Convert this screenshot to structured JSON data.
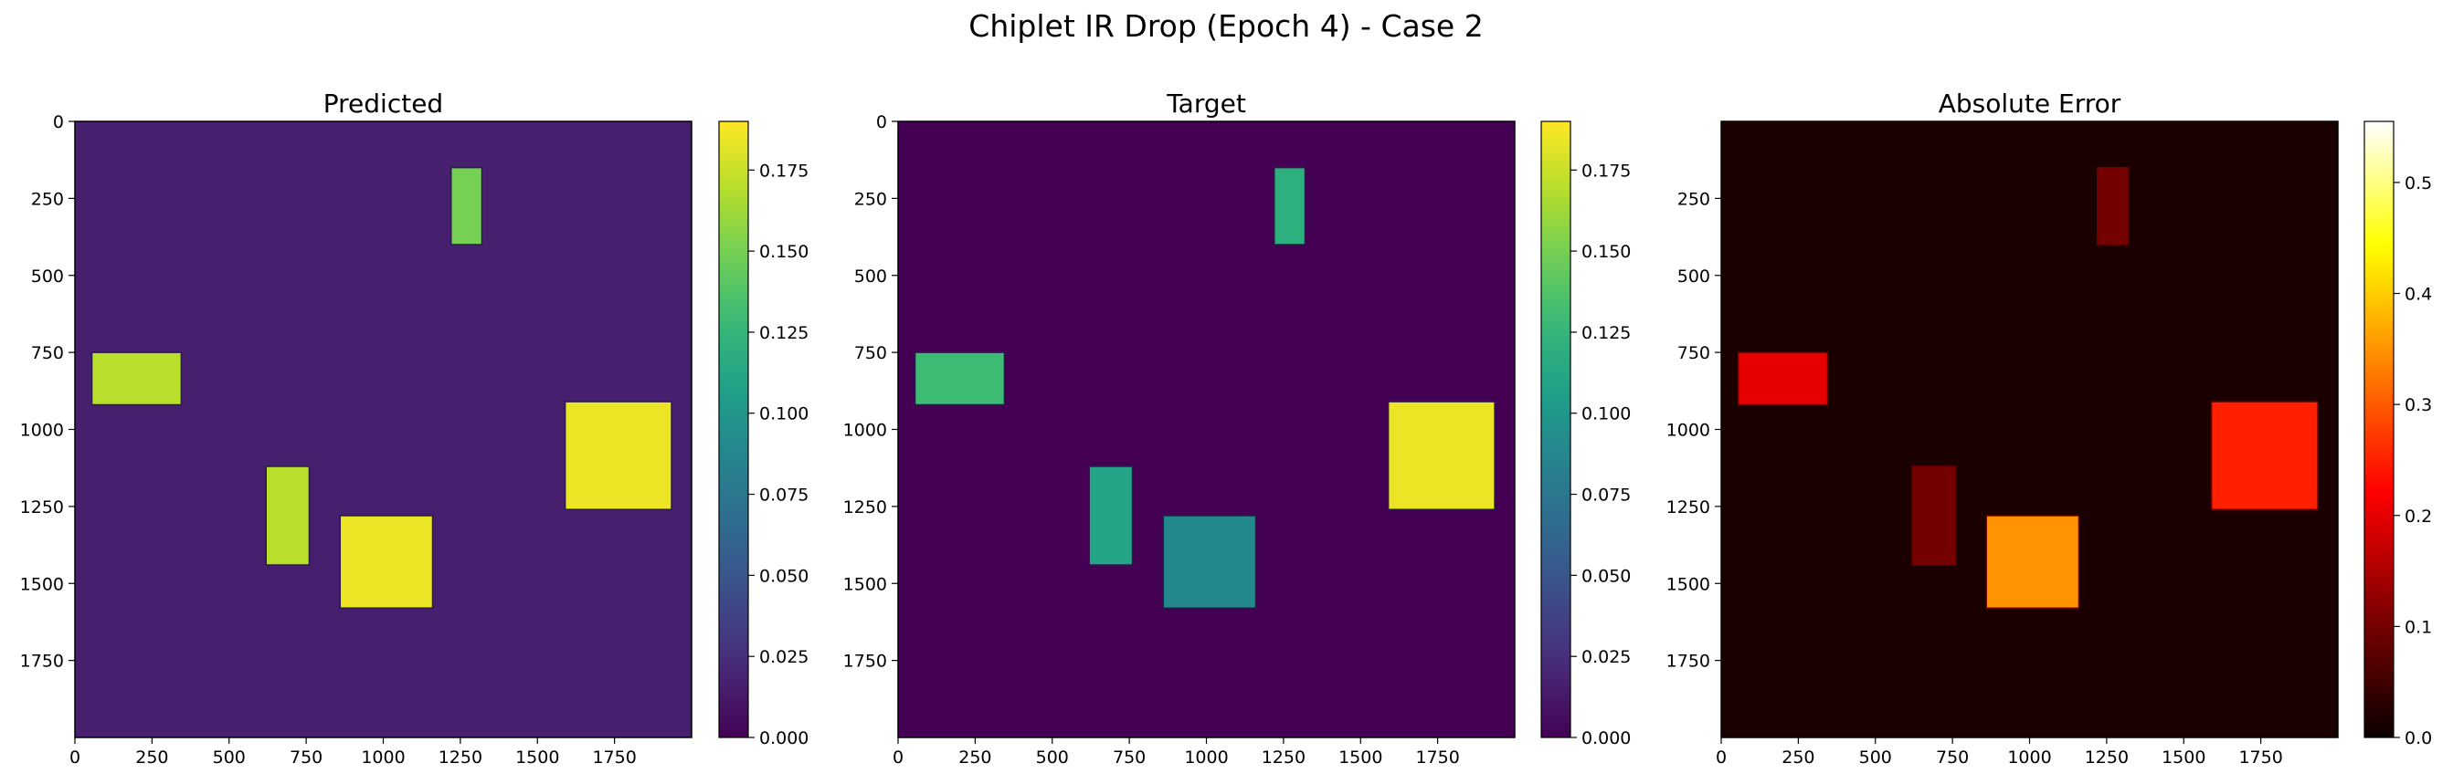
{
  "suptitle": "Chiplet IR Drop (Epoch 4) - Case 2",
  "chart_data": [
    {
      "type": "heatmap",
      "title": "Predicted",
      "colormap": "viridis",
      "xlim": [
        0,
        2000
      ],
      "ylim": [
        2000,
        0
      ],
      "xticks": [
        "0",
        "250",
        "500",
        "750",
        "1000",
        "1250",
        "1500",
        "1750"
      ],
      "yticks": [
        "0",
        "250",
        "500",
        "750",
        "1000",
        "1250",
        "1500",
        "1750"
      ],
      "background_value": 0.016,
      "colorbar": {
        "min": 0,
        "max": 0.19,
        "ticks": [
          "0.000",
          "0.025",
          "0.050",
          "0.075",
          "0.100",
          "0.125",
          "0.150",
          "0.175"
        ]
      },
      "blocks": [
        {
          "x0": 1220,
          "x1": 1320,
          "y0": 150,
          "y1": 400,
          "value": 0.15
        },
        {
          "x0": 55,
          "x1": 345,
          "y0": 750,
          "y1": 920,
          "value": 0.17
        },
        {
          "x0": 620,
          "x1": 760,
          "y0": 1120,
          "y1": 1440,
          "value": 0.17
        },
        {
          "x0": 860,
          "x1": 1160,
          "y0": 1280,
          "y1": 1580,
          "value": 0.185
        },
        {
          "x0": 1590,
          "x1": 1935,
          "y0": 910,
          "y1": 1260,
          "value": 0.185
        }
      ]
    },
    {
      "type": "heatmap",
      "title": "Target",
      "colormap": "viridis",
      "xlim": [
        0,
        2000
      ],
      "ylim": [
        2000,
        0
      ],
      "xticks": [
        "0",
        "250",
        "500",
        "750",
        "1000",
        "1250",
        "1500",
        "1750"
      ],
      "yticks": [
        "0",
        "250",
        "500",
        "750",
        "1000",
        "1250",
        "1500",
        "1750"
      ],
      "background_value": 0.0,
      "colorbar": {
        "min": 0,
        "max": 0.19,
        "ticks": [
          "0.000",
          "0.025",
          "0.050",
          "0.075",
          "0.100",
          "0.125",
          "0.150",
          "0.175"
        ]
      },
      "blocks": [
        {
          "x0": 1220,
          "x1": 1320,
          "y0": 150,
          "y1": 400,
          "value": 0.12
        },
        {
          "x0": 55,
          "x1": 345,
          "y0": 750,
          "y1": 920,
          "value": 0.13
        },
        {
          "x0": 620,
          "x1": 760,
          "y0": 1120,
          "y1": 1440,
          "value": 0.11
        },
        {
          "x0": 860,
          "x1": 1160,
          "y0": 1280,
          "y1": 1580,
          "value": 0.09
        },
        {
          "x0": 1590,
          "x1": 1935,
          "y0": 910,
          "y1": 1260,
          "value": 0.185
        }
      ]
    },
    {
      "type": "heatmap",
      "title": "Absolute Error",
      "colormap": "hot",
      "xlim": [
        0,
        2000
      ],
      "ylim": [
        2000,
        0
      ],
      "xticks": [
        "0",
        "250",
        "500",
        "750",
        "1000",
        "1250",
        "1500",
        "1750"
      ],
      "yticks": [
        "250",
        "500",
        "750",
        "1000",
        "1250",
        "1500",
        "1750"
      ],
      "background_value": 0.016,
      "colorbar": {
        "min": 0,
        "max": 0.555,
        "ticks": [
          "0.0",
          "0.1",
          "0.2",
          "0.3",
          "0.4",
          "0.5"
        ]
      },
      "blocks": [
        {
          "x0": 1220,
          "x1": 1320,
          "y0": 150,
          "y1": 400,
          "value": 0.1
        },
        {
          "x0": 55,
          "x1": 345,
          "y0": 750,
          "y1": 920,
          "value": 0.2
        },
        {
          "x0": 620,
          "x1": 760,
          "y0": 1120,
          "y1": 1440,
          "value": 0.1
        },
        {
          "x0": 860,
          "x1": 1160,
          "y0": 1280,
          "y1": 1580,
          "value": 0.35
        },
        {
          "x0": 1590,
          "x1": 1935,
          "y0": 910,
          "y1": 1260,
          "value": 0.25
        }
      ]
    }
  ]
}
